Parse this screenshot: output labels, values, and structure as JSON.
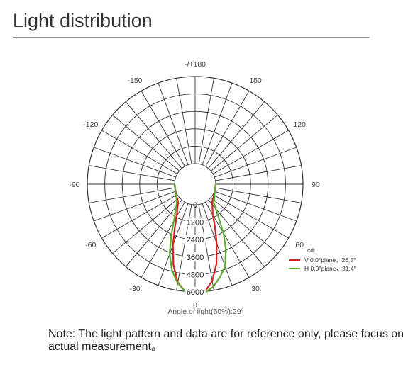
{
  "page": {
    "title": "Light distribution",
    "note_label": "Note:",
    "note_text": " The light pattern and data are for reference only, please focus on actual measurement。"
  },
  "chart_data": {
    "type": "polar",
    "angle_labels": [
      {
        "angle": 0,
        "text": "0"
      },
      {
        "angle": 30,
        "text": "30"
      },
      {
        "angle": 60,
        "text": "60"
      },
      {
        "angle": 90,
        "text": "90"
      },
      {
        "angle": 120,
        "text": "120"
      },
      {
        "angle": 150,
        "text": "150"
      },
      {
        "angle": 180,
        "text": "-/+180"
      },
      {
        "angle": -150,
        "text": "-150"
      },
      {
        "angle": -120,
        "text": "-120"
      },
      {
        "angle": -90,
        "text": "-90"
      },
      {
        "angle": -60,
        "text": "-60"
      },
      {
        "angle": -30,
        "text": "-30"
      }
    ],
    "radial_ticks": [
      0,
      1200,
      2400,
      3600,
      4800,
      6000
    ],
    "radial_max": 6000,
    "unit_label": "cd:",
    "angle_footer": "Angle of light(50%):29°",
    "series": [
      {
        "name": "V 0.0°plane，26.5°",
        "color": "#d9201f",
        "points": [
          [
            -90,
            0
          ],
          [
            -60,
            90
          ],
          [
            -45,
            250
          ],
          [
            -30,
            1100
          ],
          [
            -25,
            1900
          ],
          [
            -20,
            3050
          ],
          [
            -15,
            4350
          ],
          [
            -10,
            5450
          ],
          [
            -5,
            6050
          ],
          [
            0,
            6200
          ],
          [
            5,
            6050
          ],
          [
            10,
            5350
          ],
          [
            15,
            4250
          ],
          [
            20,
            2900
          ],
          [
            25,
            1800
          ],
          [
            30,
            1000
          ],
          [
            45,
            250
          ],
          [
            60,
            90
          ],
          [
            90,
            0
          ]
        ]
      },
      {
        "name": "H 0.0°plane，31.4°",
        "color": "#5ab02e",
        "points": [
          [
            -90,
            0
          ],
          [
            -60,
            120
          ],
          [
            -45,
            350
          ],
          [
            -30,
            1500
          ],
          [
            -25,
            2500
          ],
          [
            -20,
            3700
          ],
          [
            -15,
            4750
          ],
          [
            -10,
            5500
          ],
          [
            -5,
            6050
          ],
          [
            0,
            6200
          ],
          [
            5,
            6100
          ],
          [
            10,
            5750
          ],
          [
            15,
            5200
          ],
          [
            20,
            4600
          ],
          [
            25,
            3600
          ],
          [
            30,
            2500
          ],
          [
            35,
            1400
          ],
          [
            45,
            400
          ],
          [
            60,
            120
          ],
          [
            90,
            0
          ]
        ]
      }
    ]
  }
}
